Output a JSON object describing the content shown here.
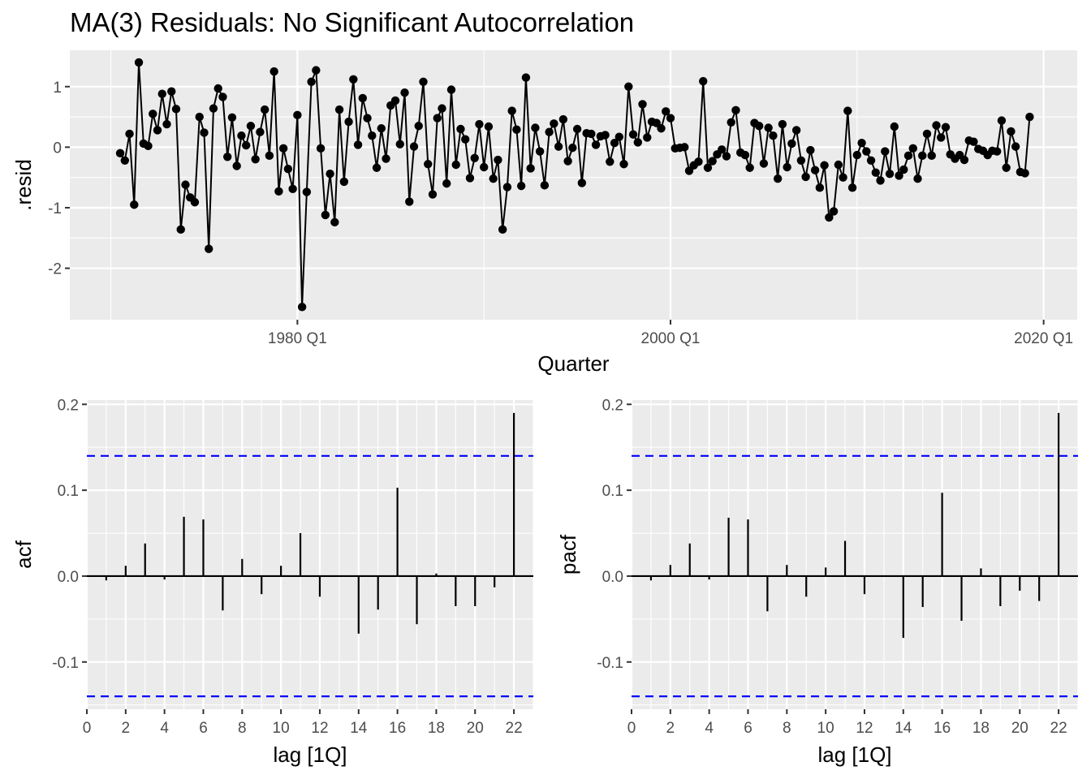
{
  "chart_data": [
    {
      "type": "line",
      "title": "MA(3) Residuals: No Significant Autocorrelation",
      "xlabel": "Quarter",
      "ylabel": ".resid",
      "x_ticks": [
        "1980 Q1",
        "2000 Q1",
        "2020 Q1"
      ],
      "x_tick_years": [
        1980,
        2000,
        2020
      ],
      "y_ticks": [
        -2,
        -1,
        0,
        1
      ],
      "xlim": [
        1967.8,
        2021.8
      ],
      "ylim": [
        -2.85,
        1.6
      ],
      "point_style": "line with points",
      "grid": true,
      "x_start_year": 1970.5,
      "x_step_years": 0.25,
      "series": [
        {
          "values": [
            -0.1,
            -0.22,
            0.22,
            -0.95,
            1.4,
            0.06,
            0.02,
            0.55,
            0.28,
            0.88,
            0.38,
            0.92,
            0.63,
            -1.36,
            -0.62,
            -0.83,
            -0.91,
            0.5,
            0.24,
            -1.68,
            0.64,
            0.97,
            0.83,
            -0.16,
            0.49,
            -0.31,
            0.19,
            0.03,
            0.35,
            -0.2,
            0.25,
            0.62,
            -0.14,
            1.25,
            -0.73,
            -0.02,
            -0.36,
            -0.69,
            0.53,
            -2.64,
            -0.74,
            1.08,
            1.27,
            -0.02,
            -1.12,
            -0.44,
            -1.24,
            0.62,
            -0.57,
            0.42,
            1.12,
            0.04,
            0.81,
            0.48,
            0.19,
            -0.34,
            0.31,
            -0.19,
            0.69,
            0.77,
            0.05,
            0.9,
            -0.9,
            0.01,
            0.35,
            1.08,
            -0.28,
            -0.78,
            0.48,
            0.64,
            -0.6,
            0.95,
            -0.29,
            0.3,
            0.13,
            -0.51,
            -0.18,
            0.38,
            -0.33,
            0.34,
            -0.52,
            -0.21,
            -1.36,
            -0.66,
            0.6,
            0.29,
            -0.64,
            1.15,
            -0.35,
            0.32,
            -0.07,
            -0.63,
            0.25,
            0.39,
            0.01,
            0.46,
            -0.23,
            -0.01,
            0.3,
            -0.59,
            0.23,
            0.22,
            0.04,
            0.18,
            0.2,
            -0.24,
            0.07,
            0.17,
            -0.28,
            1.0,
            0.21,
            0.08,
            0.71,
            0.16,
            0.42,
            0.4,
            0.31,
            0.59,
            0.48,
            -0.02,
            -0.01,
            0.0,
            -0.39,
            -0.3,
            -0.24,
            1.09,
            -0.34,
            -0.23,
            -0.12,
            -0.04,
            -0.15,
            0.41,
            0.61,
            -0.09,
            -0.13,
            -0.34,
            0.4,
            0.35,
            -0.27,
            0.32,
            0.19,
            -0.52,
            0.38,
            -0.33,
            0.06,
            0.28,
            -0.22,
            -0.49,
            -0.05,
            -0.38,
            -0.67,
            -0.3,
            -1.16,
            -1.06,
            -0.29,
            -0.5,
            0.6,
            -0.67,
            -0.13,
            0.07,
            -0.07,
            -0.22,
            -0.42,
            -0.55,
            -0.07,
            -0.44,
            0.34,
            -0.47,
            -0.37,
            -0.14,
            -0.02,
            -0.52,
            -0.14,
            0.22,
            -0.14,
            0.36,
            0.16,
            0.33,
            -0.12,
            -0.19,
            -0.13,
            -0.21,
            0.11,
            0.09,
            -0.03,
            -0.06,
            -0.13,
            -0.06,
            -0.07,
            0.44,
            -0.34,
            0.26,
            0.01,
            -0.41,
            -0.43,
            0.5
          ]
        }
      ]
    },
    {
      "type": "bar",
      "ylabel": "acf",
      "xlabel": "lag [1Q]",
      "x_ticks": [
        0,
        2,
        4,
        6,
        8,
        10,
        12,
        14,
        16,
        18,
        20,
        22
      ],
      "y_ticks": [
        "-0.1",
        "0.0",
        "0.1",
        "0.2"
      ],
      "y_tick_values": [
        -0.1,
        0.0,
        0.1,
        0.2
      ],
      "xlim": [
        0,
        23
      ],
      "ylim": [
        -0.155,
        0.205
      ],
      "ci_level": 0.14,
      "ci_color": "#0000ff",
      "lags": [
        1,
        2,
        3,
        4,
        5,
        6,
        7,
        8,
        9,
        10,
        11,
        12,
        13,
        14,
        15,
        16,
        17,
        18,
        19,
        20,
        21,
        22
      ],
      "values": [
        -0.005,
        0.012,
        0.038,
        -0.004,
        0.069,
        0.066,
        -0.04,
        0.02,
        -0.021,
        0.012,
        0.05,
        -0.024,
        0.0,
        -0.067,
        -0.039,
        0.103,
        -0.056,
        0.003,
        -0.035,
        -0.035,
        -0.013,
        0.19
      ],
      "grid": true
    },
    {
      "type": "bar",
      "ylabel": "pacf",
      "xlabel": "lag [1Q]",
      "x_ticks": [
        0,
        2,
        4,
        6,
        8,
        10,
        12,
        14,
        16,
        18,
        20,
        22
      ],
      "y_ticks": [
        "-0.1",
        "0.0",
        "0.1",
        "0.2"
      ],
      "y_tick_values": [
        -0.1,
        0.0,
        0.1,
        0.2
      ],
      "xlim": [
        0,
        23
      ],
      "ylim": [
        -0.155,
        0.205
      ],
      "ci_level": 0.14,
      "ci_color": "#0000ff",
      "lags": [
        1,
        2,
        3,
        4,
        5,
        6,
        7,
        8,
        9,
        10,
        11,
        12,
        13,
        14,
        15,
        16,
        17,
        18,
        19,
        20,
        21,
        22
      ],
      "values": [
        -0.005,
        0.013,
        0.038,
        -0.004,
        0.068,
        0.066,
        -0.041,
        0.013,
        -0.024,
        0.01,
        0.041,
        -0.021,
        0.0,
        -0.072,
        -0.036,
        0.097,
        -0.052,
        0.009,
        -0.035,
        -0.017,
        -0.029,
        0.19
      ],
      "grid": true
    }
  ]
}
